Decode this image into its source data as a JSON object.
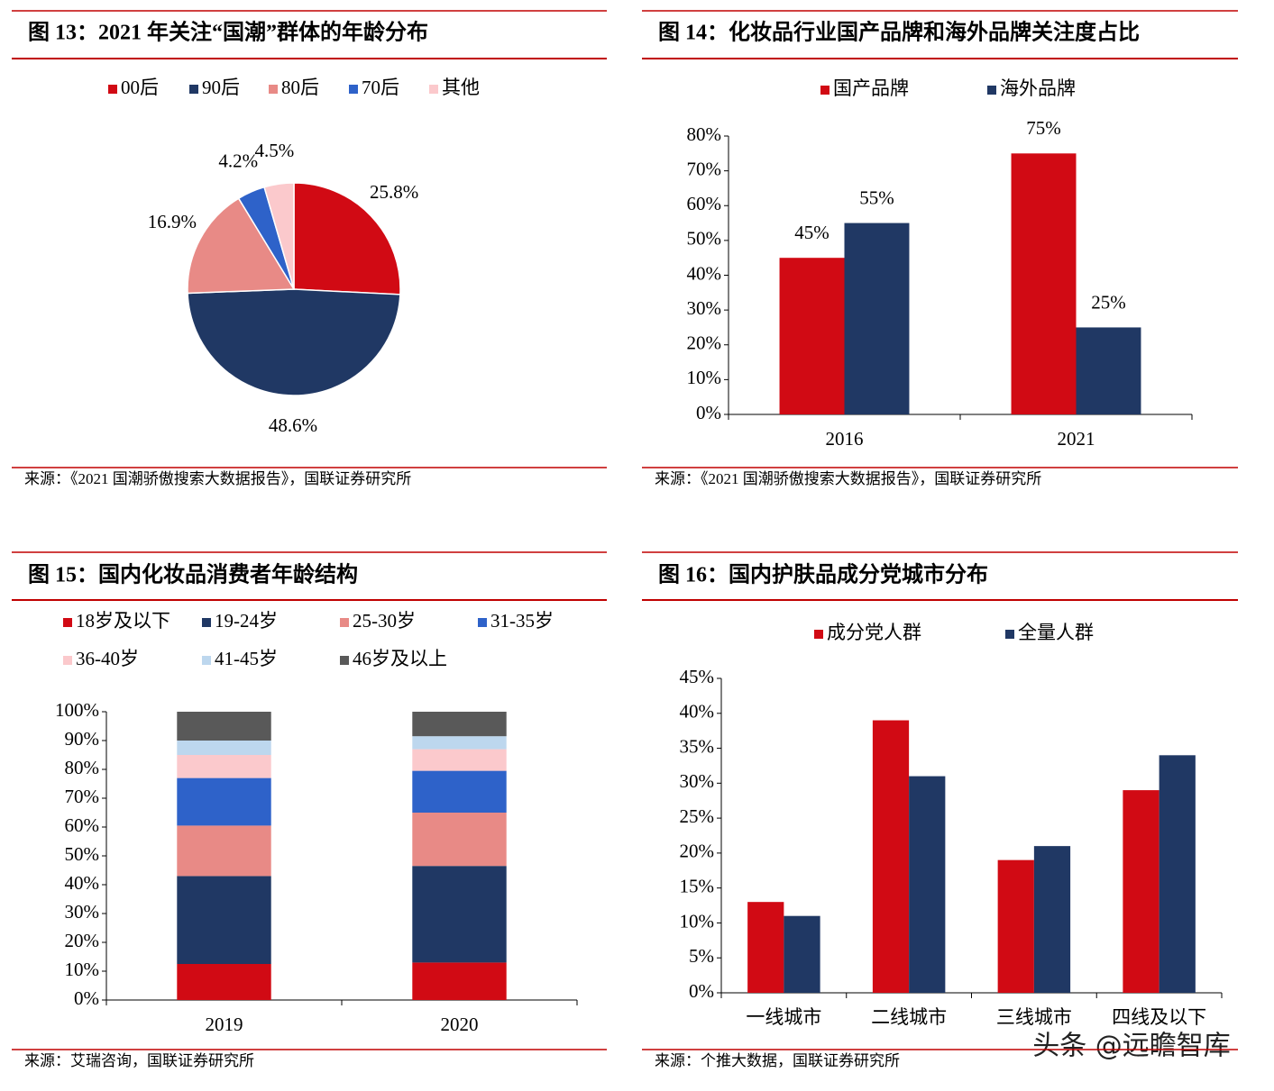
{
  "chart_data": [
    {
      "type": "pie",
      "title": "图 13：2021 年关注“国潮”群体的年龄分布",
      "categories": [
        "00后",
        "90后",
        "80后",
        "70后",
        "其他"
      ],
      "values": [
        25.8,
        48.6,
        16.9,
        4.2,
        4.5
      ],
      "value_labels": [
        "25.8%",
        "48.6%",
        "16.9%",
        "4.2%",
        "4.5%"
      ],
      "colors": [
        "#d10a14",
        "#203864",
        "#e88a86",
        "#2e62c9",
        "#fbc9cc"
      ],
      "legend": "top",
      "source": "来源：《2021 国潮骄傲搜索大数据报告》，国联证券研究所"
    },
    {
      "type": "bar",
      "title": "图 14：化妆品行业国产品牌和海外品牌关注度占比",
      "categories": [
        "2016",
        "2021"
      ],
      "series": [
        {
          "name": "国产品牌",
          "color": "#d10a14",
          "values": [
            45,
            75
          ],
          "value_labels": [
            "45%",
            "75%"
          ]
        },
        {
          "name": "海外品牌",
          "color": "#203864",
          "values": [
            55,
            25
          ],
          "value_labels": [
            "55%",
            "25%"
          ]
        }
      ],
      "ylim": [
        0,
        80
      ],
      "yticks": [
        {
          "value": 0,
          "label": "0%"
        },
        {
          "value": 10,
          "label": "10%"
        },
        {
          "value": 20,
          "label": "20%"
        },
        {
          "value": 30,
          "label": "30%"
        },
        {
          "value": 40,
          "label": "40%"
        },
        {
          "value": 50,
          "label": "50%"
        },
        {
          "value": 60,
          "label": "60%"
        },
        {
          "value": 70,
          "label": "70%"
        },
        {
          "value": 80,
          "label": "80%"
        }
      ],
      "legend": "top",
      "source": "来源：《2021 国潮骄傲搜索大数据报告》，国联证券研究所"
    },
    {
      "type": "bar",
      "stacked": true,
      "title": "图 15：国内化妆品消费者年龄结构",
      "categories": [
        "2019",
        "2020"
      ],
      "series": [
        {
          "name": "18岁及以下",
          "color": "#d10a14",
          "values": [
            12.5,
            13
          ]
        },
        {
          "name": "19-24岁",
          "color": "#203864",
          "values": [
            30.5,
            33.5
          ]
        },
        {
          "name": "25-30岁",
          "color": "#e88a86",
          "values": [
            17.5,
            18.5
          ]
        },
        {
          "name": "31-35岁",
          "color": "#2e62c9",
          "values": [
            16.5,
            14.5
          ]
        },
        {
          "name": "36-40岁",
          "color": "#fbc9cc",
          "values": [
            8,
            7.5
          ]
        },
        {
          "name": "41-45岁",
          "color": "#bdd7ee",
          "values": [
            5,
            4.5
          ]
        },
        {
          "name": "46岁及以上",
          "color": "#595959",
          "values": [
            10,
            8.5
          ]
        }
      ],
      "ylim": [
        0,
        100
      ],
      "yticks": [
        {
          "value": 0,
          "label": "0%"
        },
        {
          "value": 10,
          "label": "10%"
        },
        {
          "value": 20,
          "label": "20%"
        },
        {
          "value": 30,
          "label": "30%"
        },
        {
          "value": 40,
          "label": "40%"
        },
        {
          "value": 50,
          "label": "50%"
        },
        {
          "value": 60,
          "label": "60%"
        },
        {
          "value": 70,
          "label": "70%"
        },
        {
          "value": 80,
          "label": "80%"
        },
        {
          "value": 90,
          "label": "90%"
        },
        {
          "value": 100,
          "label": "100%"
        }
      ],
      "legend": "top",
      "source": "来源：艾瑞咨询，国联证券研究所"
    },
    {
      "type": "bar",
      "title": "图 16：国内护肤品成分党城市分布",
      "categories": [
        "一线城市",
        "二线城市",
        "三线城市",
        "四线及以下"
      ],
      "series": [
        {
          "name": "成分党人群",
          "color": "#d10a14",
          "values": [
            13,
            39,
            19,
            29
          ]
        },
        {
          "name": "全量人群",
          "color": "#203864",
          "values": [
            11,
            31,
            21,
            34
          ]
        }
      ],
      "ylim": [
        0,
        45
      ],
      "yticks": [
        {
          "value": 0,
          "label": "0%"
        },
        {
          "value": 5,
          "label": "5%"
        },
        {
          "value": 10,
          "label": "10%"
        },
        {
          "value": 15,
          "label": "15%"
        },
        {
          "value": 20,
          "label": "20%"
        },
        {
          "value": 25,
          "label": "25%"
        },
        {
          "value": 30,
          "label": "30%"
        },
        {
          "value": 35,
          "label": "35%"
        },
        {
          "value": 40,
          "label": "40%"
        },
        {
          "value": 45,
          "label": "45%"
        }
      ],
      "legend": "top",
      "source": "来源：个推大数据，国联证券研究所"
    }
  ],
  "watermark": "头条 @远瞻智库"
}
